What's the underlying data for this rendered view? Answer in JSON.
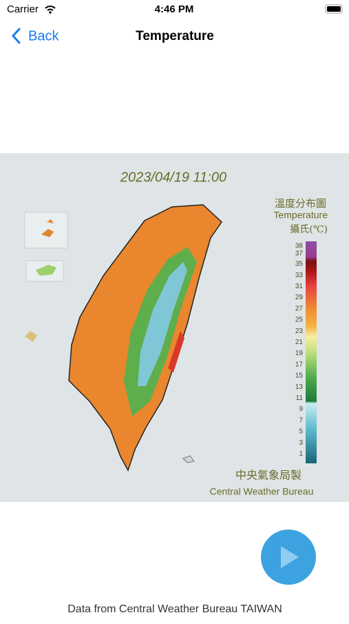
{
  "status_bar": {
    "carrier": "Carrier",
    "time": "4:46 PM"
  },
  "nav": {
    "back": "Back",
    "title": "Temperature"
  },
  "map": {
    "date": "2023/04/19 11:00",
    "title_zh": "溫度分布圖",
    "title_en": "Temperature",
    "unit": "攝氏(℃)",
    "legend": [
      38,
      37,
      35,
      33,
      31,
      29,
      27,
      25,
      23,
      21,
      19,
      17,
      15,
      13,
      11,
      9,
      7,
      5,
      3,
      1
    ],
    "credit_zh": "中央氣象局製",
    "credit_en": "Central Weather Bureau"
  },
  "footer": "Data from Central Weather Bureau TAIWAN"
}
